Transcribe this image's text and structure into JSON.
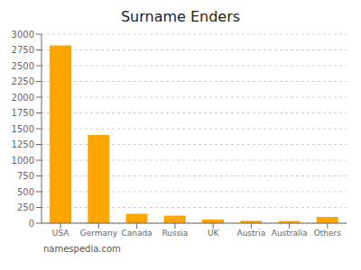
{
  "chart_data": {
    "type": "bar",
    "title": "Surname Enders",
    "categories": [
      "USA",
      "Germany",
      "Canada",
      "Russia",
      "UK",
      "Austria",
      "Australia",
      "Others"
    ],
    "values": [
      2820,
      1400,
      150,
      120,
      60,
      40,
      35,
      100
    ],
    "color": "#FFA500",
    "ylim": [
      0,
      3000
    ],
    "yticks": [
      0,
      250,
      500,
      750,
      1000,
      1250,
      1500,
      1750,
      2000,
      2250,
      2500,
      2750,
      3000
    ],
    "grid": true,
    "annotations": [
      "namespedia.com"
    ]
  }
}
